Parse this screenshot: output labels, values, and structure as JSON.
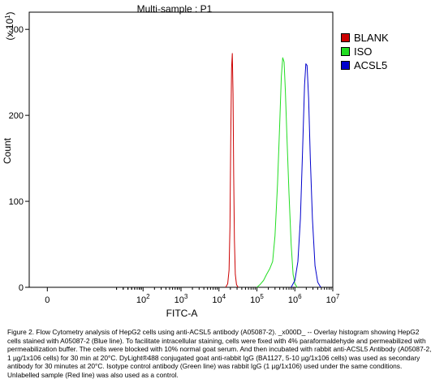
{
  "chart_data": {
    "type": "line",
    "title": "Multi-sample : P1",
    "xlabel": "FITC-A",
    "ylabel": "Count",
    "y_multiplier": "(x 10",
    "y_multiplier_exp": "1",
    "x_scale": "log",
    "xlim": [
      0.1,
      10000000
    ],
    "ylim": [
      0,
      320
    ],
    "x_ticks": [
      {
        "label": "0",
        "value": 0.3
      },
      {
        "label": "10",
        "exp": "2",
        "value": 100
      },
      {
        "label": "10",
        "exp": "3",
        "value": 1000
      },
      {
        "label": "10",
        "exp": "4",
        "value": 10000
      },
      {
        "label": "10",
        "exp": "5",
        "value": 100000
      },
      {
        "label": "10",
        "exp": "6",
        "value": 1000000
      },
      {
        "label": "10",
        "exp": "7",
        "value": 10000000
      }
    ],
    "y_ticks": [
      0,
      100,
      200,
      300
    ],
    "legend_position": "right",
    "series": [
      {
        "name": "BLANK",
        "color": "#cc0000",
        "x": [
          15000,
          17000,
          18500,
          19500,
          20500,
          21500,
          22500,
          23500,
          24500,
          25500,
          27000,
          29000,
          32000
        ],
        "y": [
          0,
          4,
          20,
          70,
          175,
          255,
          272,
          225,
          130,
          55,
          15,
          3,
          0
        ]
      },
      {
        "name": "ISO",
        "color": "#22dd22",
        "x": [
          100000,
          120000,
          150000,
          180000,
          220000,
          260000,
          300000,
          350000,
          400000,
          440000,
          480000,
          520000,
          560000,
          620000,
          700000,
          800000,
          900000,
          1000000,
          1150000
        ],
        "y": [
          0,
          3,
          8,
          15,
          22,
          30,
          60,
          120,
          190,
          245,
          267,
          262,
          230,
          175,
          110,
          50,
          15,
          4,
          0
        ]
      },
      {
        "name": "ACSL5",
        "color": "#0000cc",
        "x": [
          800000,
          1000000,
          1200000,
          1400000,
          1600000,
          1800000,
          1950000,
          2100000,
          2300000,
          2550000,
          2900000,
          3400000,
          4000000,
          4800000
        ],
        "y": [
          0,
          8,
          30,
          80,
          160,
          235,
          260,
          258,
          220,
          150,
          80,
          25,
          6,
          0
        ]
      }
    ]
  },
  "caption": "Figure 2. Flow Cytometry analysis of HepG2 cells using anti-ACSL5 antibody (A05087-2). _x000D_ -- Overlay histogram showing HepG2 cells stained with A05087-2 (Blue line). To facilitate intracellular staining, cells were fixed with 4% paraformaldehyde and permeabilized with permeabilization buffer. The cells were blocked with 10% normal goat serum. And then incubated with rabbit anti-ACSL5 Antibody (A05087-2, 1 µg/1x106 cells) for 30 min at 20°C. DyLight®488 conjugated goat anti-rabbit IgG (BA1127, 5-10 µg/1x106 cells) was used as secondary antibody for 30 minutes at 20°C. Isotype control antibody (Green line) was rabbit IgG (1 µg/1x106) used under the same conditions. Unlabelled sample (Red line) was also used as a control."
}
